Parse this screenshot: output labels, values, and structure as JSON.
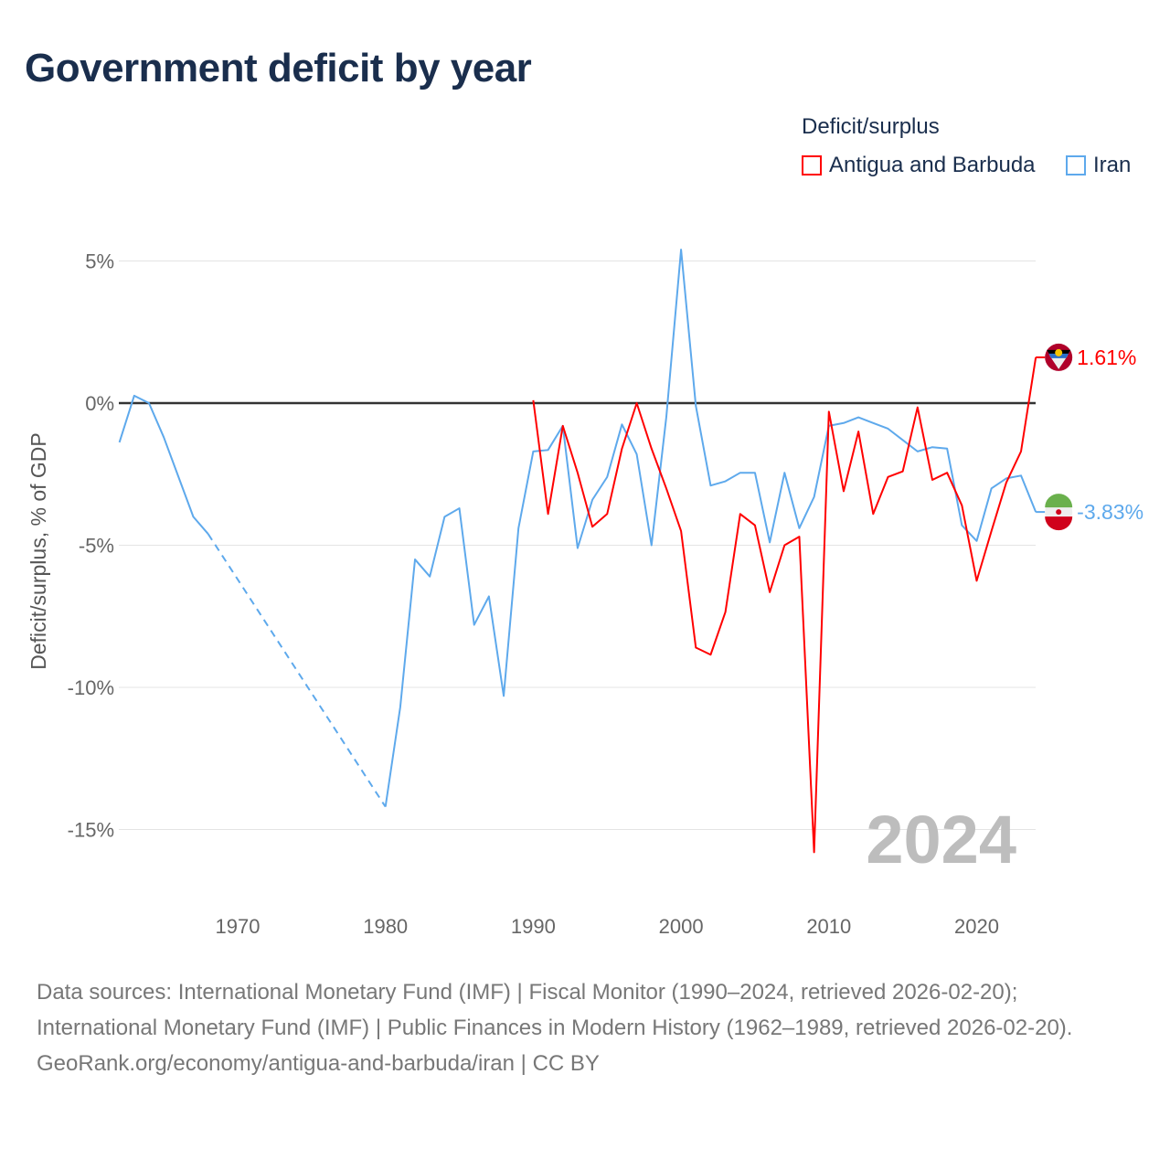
{
  "title": "Government deficit by year",
  "legend": {
    "title": "Deficit/surplus",
    "items": [
      {
        "name": "Antigua and Barbuda",
        "color": "#ff0000"
      },
      {
        "name": "Iran",
        "color": "#5ea9ec"
      }
    ]
  },
  "watermark_year": "2024",
  "footer": {
    "sources": "Data sources: International Monetary Fund (IMF) | Fiscal Monitor (1990–2024, retrieved 2026-02-20); International Monetary Fund (IMF) | Public Finances in Modern History (1962–1989, retrieved 2026-02-20).",
    "link": "GeoRank.org/economy/antigua-and-barbuda/iran | CC BY"
  },
  "chart_data": {
    "type": "line",
    "title": "Government deficit by year",
    "xlabel": "",
    "ylabel": "Deficit/surplus, % of GDP",
    "xlim": [
      1962,
      2024
    ],
    "ylim": [
      -17,
      5.6
    ],
    "x_ticks": [
      "1970",
      "1980",
      "1990",
      "2000",
      "2010",
      "2020"
    ],
    "y_ticks": [
      {
        "v": 5,
        "label": "5%"
      },
      {
        "v": 0,
        "label": "0%"
      },
      {
        "v": -5,
        "label": "-5%"
      },
      {
        "v": -10,
        "label": "-10%"
      },
      {
        "v": -15,
        "label": "-15%"
      }
    ],
    "grid": true,
    "legend_position": "top-right",
    "series": [
      {
        "name": "Iran",
        "color": "#5ea9ec",
        "end_label": "-3.83%",
        "x": [
          1962,
          1963,
          1964,
          1965,
          1966,
          1967,
          1968,
          1980,
          1981,
          1982,
          1983,
          1984,
          1985,
          1986,
          1987,
          1988,
          1989,
          1990,
          1991,
          1992,
          1993,
          1994,
          1995,
          1996,
          1997,
          1998,
          1999,
          2000,
          2001,
          2002,
          2003,
          2004,
          2005,
          2006,
          2007,
          2008,
          2009,
          2010,
          2011,
          2012,
          2013,
          2014,
          2015,
          2016,
          2017,
          2018,
          2019,
          2020,
          2021,
          2022,
          2023,
          2024
        ],
        "y": [
          -1.38,
          0.26,
          0,
          -1.2,
          -2.6,
          -4.0,
          -4.6,
          -14.2,
          -10.7,
          -5.5,
          -6.1,
          -4.0,
          -3.7,
          -7.8,
          -6.8,
          -10.3,
          -4.4,
          -1.7,
          -1.65,
          -0.8,
          -5.1,
          -3.4,
          -2.6,
          -0.75,
          -1.8,
          -5.0,
          -0.5,
          5.4,
          -0.1,
          -2.9,
          -2.75,
          -2.45,
          -2.45,
          -4.9,
          -2.45,
          -4.4,
          -3.3,
          -0.8,
          -0.7,
          -0.5,
          -0.7,
          -0.9,
          -1.3,
          -1.7,
          -1.55,
          -1.6,
          -4.3,
          -4.85,
          -3.0,
          -2.65,
          -2.55,
          -3.83
        ],
        "gap_after_year": 1968
      },
      {
        "name": "Antigua and Barbuda",
        "color": "#ff0000",
        "end_label": "1.61%",
        "x": [
          1990,
          1991,
          1992,
          1993,
          1994,
          1995,
          1996,
          1997,
          1998,
          1999,
          2000,
          2001,
          2002,
          2003,
          2004,
          2005,
          2006,
          2007,
          2008,
          2009,
          2010,
          2011,
          2012,
          2013,
          2014,
          2015,
          2016,
          2017,
          2018,
          2019,
          2020,
          2021,
          2022,
          2023,
          2024
        ],
        "y": [
          0.1,
          -3.9,
          -0.8,
          -2.45,
          -4.35,
          -3.9,
          -1.6,
          0,
          -1.6,
          -3.0,
          -4.5,
          -8.6,
          -8.85,
          -7.35,
          -3.9,
          -4.3,
          -6.65,
          -5.0,
          -4.7,
          -15.8,
          -0.3,
          -3.1,
          -1.0,
          -3.9,
          -2.6,
          -2.4,
          -0.15,
          -2.7,
          -2.45,
          -3.6,
          -6.25,
          -4.5,
          -2.8,
          -1.7,
          1.61
        ]
      }
    ]
  }
}
